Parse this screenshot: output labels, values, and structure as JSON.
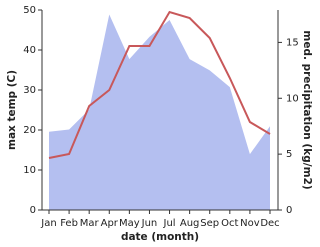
{
  "chart_data": {
    "type": "line-area",
    "x_label": "date (month)",
    "y_label": "max temp (C)",
    "y2_label": "med. precipitation (kg/m2)",
    "categories": [
      "Jan",
      "Feb",
      "Mar",
      "Apr",
      "May",
      "Jun",
      "Jul",
      "Aug",
      "Sep",
      "Oct",
      "Nov",
      "Dec"
    ],
    "series": [
      {
        "type": "line",
        "color": "#c8585a",
        "values": [
          13,
          14,
          26,
          30,
          41,
          41,
          49.5,
          48,
          43,
          33,
          22,
          19
        ]
      },
      {
        "type": "area",
        "axis": "y2",
        "color": "#b4bff0",
        "values": [
          7,
          7.2,
          9,
          17.5,
          13.5,
          15.5,
          17,
          13.5,
          12.5,
          11,
          5,
          7.5
        ]
      }
    ],
    "ylim": [
      0,
      50
    ],
    "yticks": [
      0,
      10,
      20,
      30,
      40,
      50
    ],
    "y2lim": [
      0,
      17.9
    ],
    "y2ticks": [
      0,
      5,
      10,
      15
    ]
  }
}
